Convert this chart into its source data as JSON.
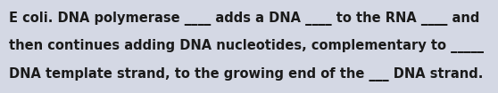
{
  "lines": [
    "E coli. DNA polymerase ____ adds a DNA ____ to the RNA ____ and",
    "then continues adding DNA nucleotides, complementary to _____",
    "DNA template strand, to the growing end of the ___ DNA strand."
  ],
  "background_color": "#d4d8e4",
  "text_color": "#1a1a1a",
  "font_size": 10.5,
  "font_family": "DejaVu Sans",
  "font_weight": "bold",
  "fig_width": 5.58,
  "fig_height": 1.05,
  "dpi": 100
}
